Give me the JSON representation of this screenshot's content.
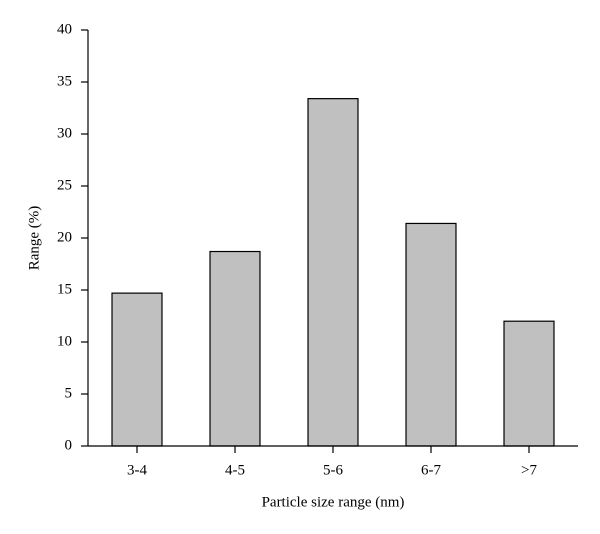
{
  "chart_data": {
    "type": "bar",
    "categories": [
      "3-4",
      "4-5",
      "5-6",
      "6-7",
      ">7"
    ],
    "values": [
      14.7,
      18.7,
      33.4,
      21.4,
      12.0
    ],
    "color": "#c0c0c0",
    "x_label": "Particle size range (nm)",
    "y_label": "Range (%)",
    "ylim": [
      0,
      40
    ],
    "yticks": [
      0,
      5,
      10,
      15,
      20,
      25,
      30,
      35,
      40
    ],
    "grid": false
  }
}
